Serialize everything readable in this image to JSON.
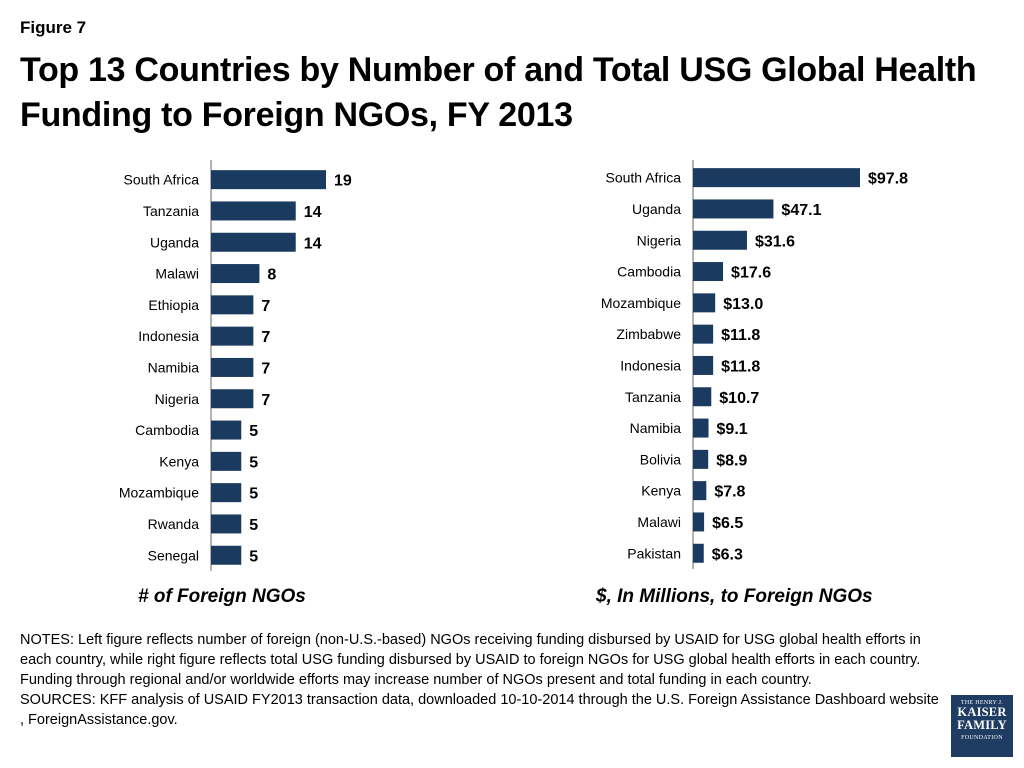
{
  "figure_label": "Figure 7",
  "title": "Top 13 Countries by Number of and Total USG Global Health Funding to Foreign NGOs, FY 2013",
  "chart_data": [
    {
      "type": "bar",
      "orientation": "horizontal",
      "xlabel": "# of Foreign NGOs",
      "color": "#1b3a5f",
      "categories": [
        "South Africa",
        "Tanzania",
        "Uganda",
        "Malawi",
        "Ethiopia",
        "Indonesia",
        "Namibia",
        "Nigeria",
        "Cambodia",
        "Kenya",
        "Mozambique",
        "Rwanda",
        "Senegal"
      ],
      "values": [
        19,
        14,
        14,
        8,
        7,
        7,
        7,
        7,
        5,
        5,
        5,
        5,
        5
      ],
      "value_labels": [
        "19",
        "14",
        "14",
        "8",
        "7",
        "7",
        "7",
        "7",
        "5",
        "5",
        "5",
        "5",
        "5"
      ]
    },
    {
      "type": "bar",
      "orientation": "horizontal",
      "xlabel": "$, In Millions, to Foreign NGOs",
      "color": "#1b3a5f",
      "categories": [
        "South Africa",
        "Uganda",
        "Nigeria",
        "Cambodia",
        "Mozambique",
        "Zimbabwe",
        "Indonesia",
        "Tanzania",
        "Namibia",
        "Bolivia",
        "Kenya",
        "Malawi",
        "Pakistan"
      ],
      "values": [
        97.8,
        47.1,
        31.6,
        17.6,
        13.0,
        11.8,
        11.8,
        10.7,
        9.1,
        8.9,
        7.8,
        6.5,
        6.3
      ],
      "value_labels": [
        "$97.8",
        "$47.1",
        "$31.6",
        "$17.6",
        "$13.0",
        "$11.8",
        "$11.8",
        "$10.7",
        "$9.1",
        "$8.9",
        "$7.8",
        "$6.5",
        "$6.3"
      ]
    }
  ],
  "notes": {
    "notes_text": "NOTES: Left figure reflects number of foreign (non-U.S.-based) NGOs receiving funding disbursed by USAID for USG global health efforts in each country, while right figure reflects total USG funding disbursed by USAID to foreign NGOs for USG global health efforts in each country. Funding through regional and/or worldwide efforts may increase number of NGOs present and total funding in each country.",
    "sources_text": "SOURCES: KFF analysis of USAID FY2013 transaction data, downloaded 10-10-2014 through the U.S. Foreign Assistance Dashboard website , ForeignAssistance.gov."
  },
  "logo": {
    "line1": "THE HENRY J.",
    "line2": "KAISER",
    "line3": "FAMILY",
    "line4": "FOUNDATION"
  }
}
